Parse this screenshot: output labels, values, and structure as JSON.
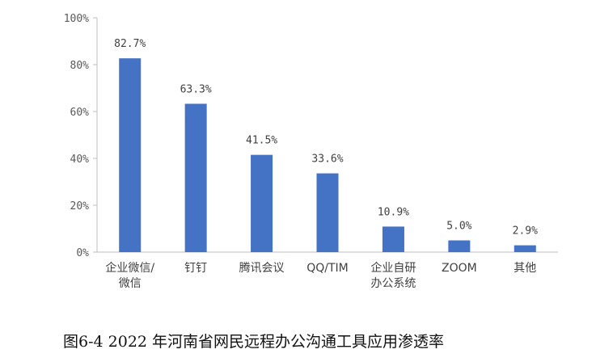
{
  "caption": "图6-4 2022 年河南省网民远程办公沟通工具应用渗透率",
  "chart_data": {
    "type": "bar",
    "categories": [
      "企业微信/\n微信",
      "钉钉",
      "腾讯会议",
      "QQ/TIM",
      "企业自研\n办公系统",
      "ZOOM",
      "其他"
    ],
    "values": [
      82.7,
      63.3,
      41.5,
      33.6,
      10.9,
      5.0,
      2.9
    ],
    "data_labels": [
      "82.7%",
      "63.3%",
      "41.5%",
      "33.6%",
      "10.9%",
      "5.0%",
      "2.9%"
    ],
    "yticks": [
      "0%",
      "20%",
      "40%",
      "60%",
      "80%",
      "100%"
    ],
    "ylim": [
      0,
      100
    ],
    "bar_color": "#4472C4",
    "grid": false,
    "title": "",
    "xlabel": "",
    "ylabel": ""
  }
}
